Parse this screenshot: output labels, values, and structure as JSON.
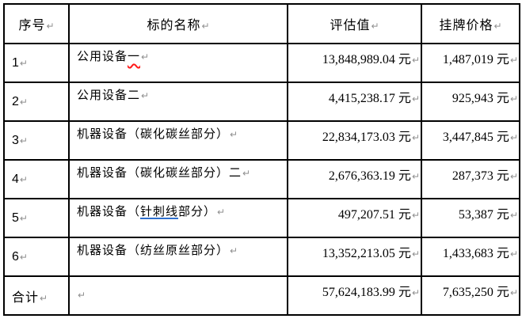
{
  "marks": {
    "paragraph_mark": "↵"
  },
  "colors": {
    "background": "#ffffff",
    "border": "#000000",
    "text": "#000000",
    "paragraph_mark": "#8f8f8f",
    "spell_underline": "#ff1a1a",
    "grammar_underline": "#2e6fce"
  },
  "table": {
    "headers": [
      "序号",
      "标的名称",
      "评估值",
      "挂牌价格"
    ],
    "rows": [
      {
        "no": "1",
        "name_segments": [
          {
            "t": "公用设备"
          },
          {
            "t": "一",
            "u": "spell"
          }
        ],
        "assessed": "13,848,989.04 元",
        "listing": "1,487,019 元"
      },
      {
        "no": "2",
        "name_segments": [
          {
            "t": "公用设备二"
          }
        ],
        "assessed": "4,415,238.17 元",
        "listing": "925,943 元"
      },
      {
        "no": "3",
        "name_segments": [
          {
            "t": "机器设备（碳化碳丝部分）"
          }
        ],
        "assessed": "22,834,173.03 元",
        "listing": "3,447,845 元"
      },
      {
        "no": "4",
        "name_segments": [
          {
            "t": "机器设备（碳化碳丝部分）二"
          }
        ],
        "assessed": "2,676,363.19 元",
        "listing": "287,373 元"
      },
      {
        "no": "5",
        "name_segments": [
          {
            "t": "机器设备（"
          },
          {
            "t": "针刺线",
            "u": "grammar"
          },
          {
            "t": "部分）"
          }
        ],
        "assessed": "497,207.51 元",
        "listing": "53,387 元"
      },
      {
        "no": "6",
        "name_segments": [
          {
            "t": "机器设备（纺丝原丝部分）"
          }
        ],
        "assessed": "13,352,213.05 元",
        "listing": "1,433,683 元"
      }
    ],
    "total_row": {
      "no": "合计",
      "assessed": "57,624,183.99 元",
      "listing": "7,635,250 元"
    }
  }
}
